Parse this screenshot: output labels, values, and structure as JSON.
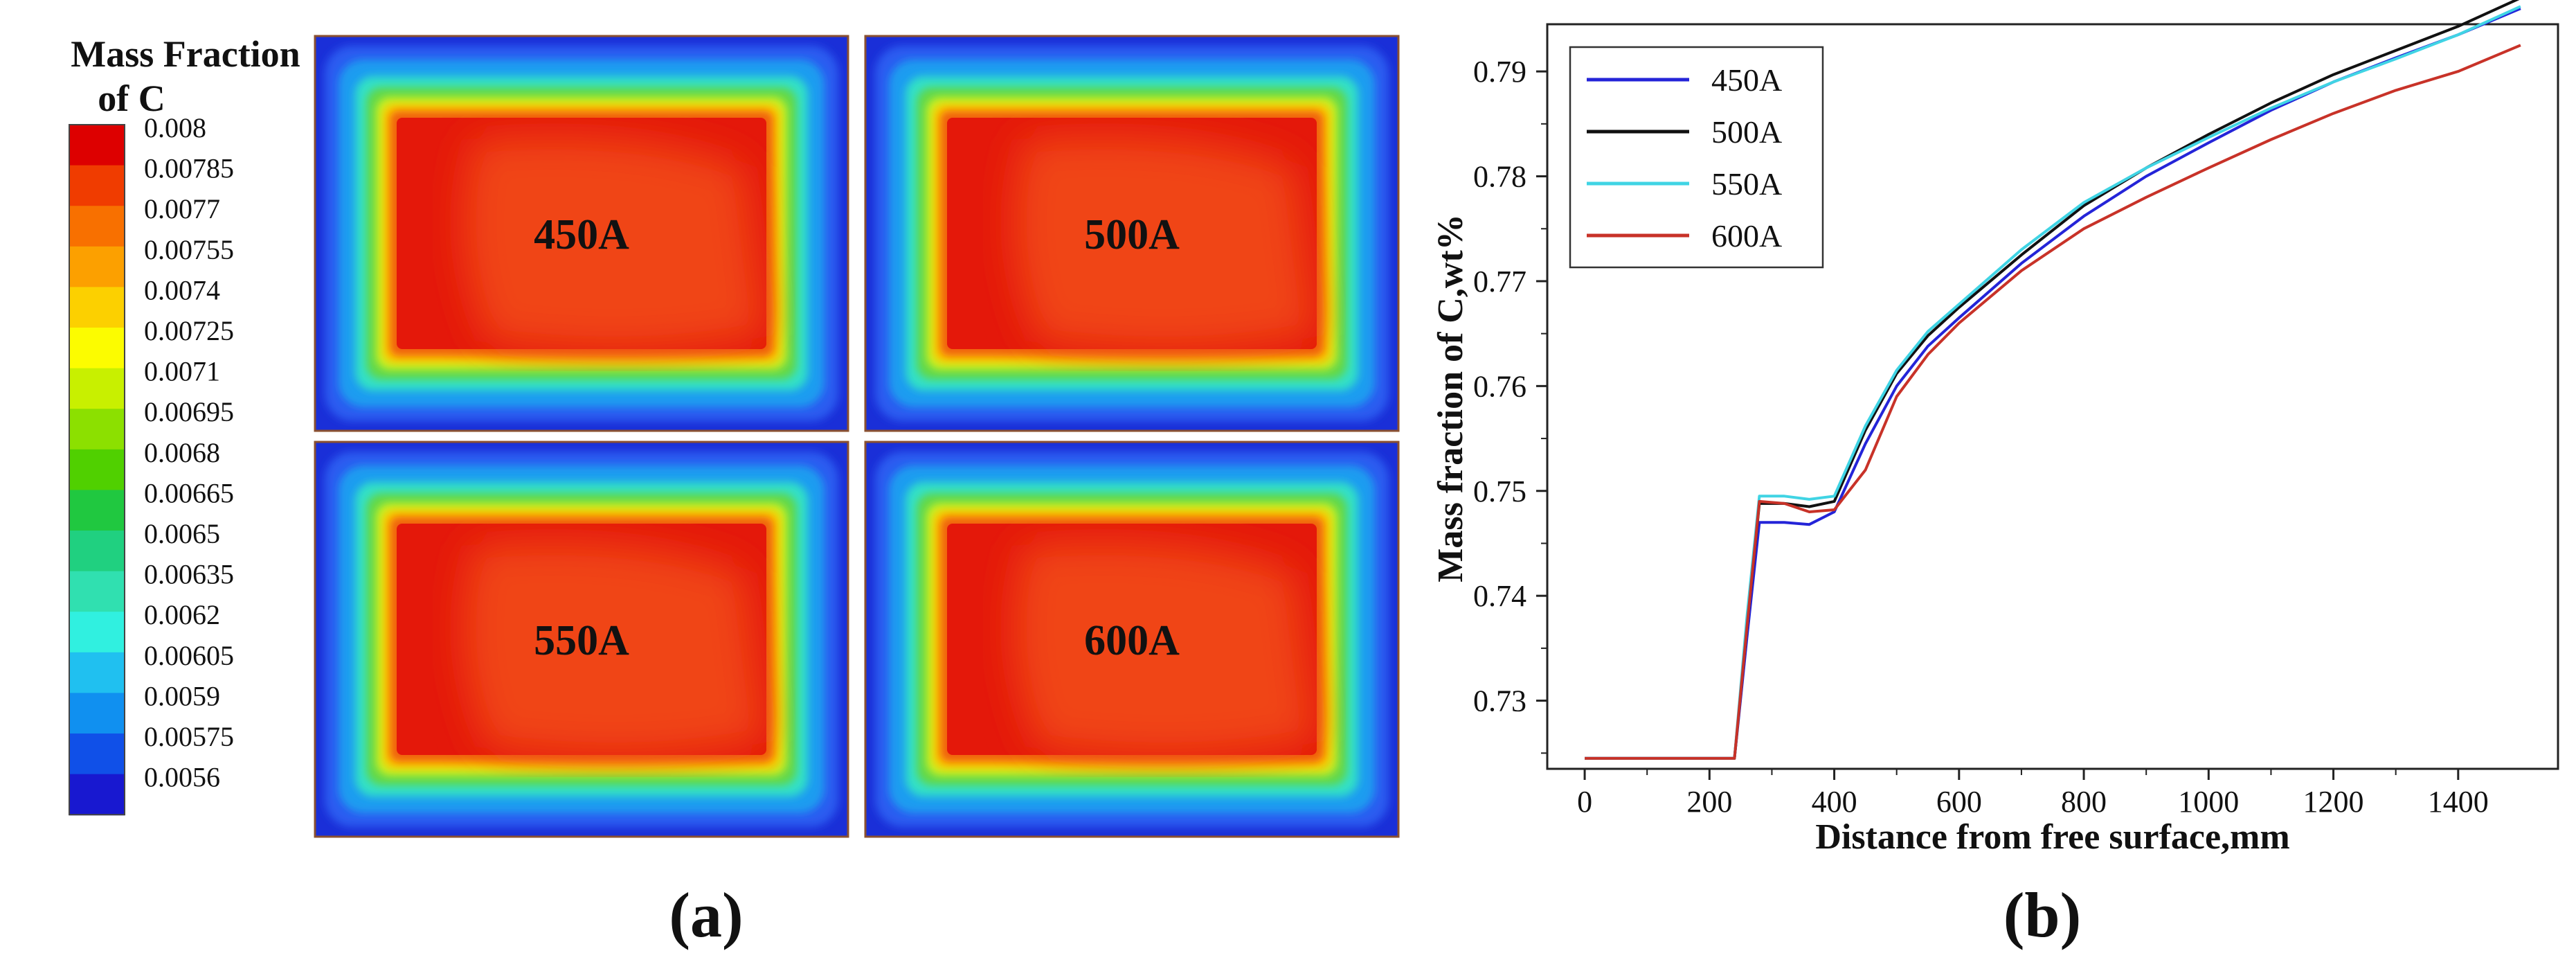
{
  "panel_a": {
    "caption": "(a)",
    "legend_title_line1": "Mass Fraction",
    "legend_title_line2": "of C",
    "legend_levels": [
      "0.008",
      "0.00785",
      "0.0077",
      "0.00755",
      "0.0074",
      "0.00725",
      "0.0071",
      "0.00695",
      "0.0068",
      "0.00665",
      "0.0065",
      "0.00635",
      "0.0062",
      "0.00605",
      "0.0059",
      "0.00575",
      "0.0056"
    ],
    "legend_colors": [
      "#dd0000",
      "#f03c00",
      "#f87000",
      "#fca000",
      "#fcd000",
      "#fcfc00",
      "#c8f000",
      "#8ce000",
      "#50d000",
      "#20c840",
      "#20d080",
      "#30e0b0",
      "#30f0e0",
      "#20c0f0",
      "#1090f0",
      "#1050e8",
      "#1818d0"
    ],
    "contours": [
      {
        "label": "450A",
        "core_color": "#e4180a",
        "plateau_color": "#f04418"
      },
      {
        "label": "500A",
        "core_color": "#e4180a",
        "plateau_color": "#f04418"
      },
      {
        "label": "550A",
        "core_color": "#e4180a",
        "plateau_color": "#f04418"
      },
      {
        "label": "600A",
        "core_color": "#e4180a",
        "plateau_color": "#f04418"
      }
    ]
  },
  "chart_data": {
    "type": "line",
    "caption": "(b)",
    "xlabel": "Distance from free surface,mm",
    "ylabel": "Mass fraction of C,wt%",
    "xlim": [
      -60,
      1560
    ],
    "ylim": [
      0.7235,
      0.7945
    ],
    "xticks": [
      0,
      200,
      400,
      600,
      800,
      1000,
      1200,
      1400
    ],
    "xtick_labels": [
      "0",
      "200",
      "400",
      "600",
      "800",
      "1000",
      "1200",
      "1400"
    ],
    "yticks": [
      0.73,
      0.74,
      0.75,
      0.76,
      0.77,
      0.78,
      0.79
    ],
    "ytick_labels": [
      "0.73",
      "0.74",
      "0.75",
      "0.76",
      "0.77",
      "0.78",
      "0.79"
    ],
    "legend_position": "top-left",
    "series": [
      {
        "name": "450A",
        "color": "#2424d8",
        "x": [
          0,
          240,
          260,
          280,
          320,
          360,
          400,
          450,
          500,
          550,
          600,
          700,
          800,
          900,
          1000,
          1100,
          1200,
          1300,
          1400,
          1500
        ],
        "y": [
          0.7245,
          0.7245,
          0.736,
          0.747,
          0.747,
          0.7468,
          0.748,
          0.7545,
          0.76,
          0.7638,
          0.7665,
          0.7717,
          0.7762,
          0.78,
          0.7832,
          0.7863,
          0.789,
          0.7913,
          0.7935,
          0.796
        ]
      },
      {
        "name": "500A",
        "color": "#111111",
        "x": [
          0,
          240,
          260,
          280,
          320,
          360,
          400,
          450,
          500,
          550,
          600,
          700,
          800,
          900,
          1000,
          1100,
          1200,
          1300,
          1400,
          1500
        ],
        "y": [
          0.7245,
          0.7245,
          0.737,
          0.7488,
          0.7488,
          0.7485,
          0.749,
          0.7558,
          0.7612,
          0.7648,
          0.7675,
          0.7725,
          0.7772,
          0.7808,
          0.784,
          0.787,
          0.7897,
          0.792,
          0.7943,
          0.797
        ]
      },
      {
        "name": "550A",
        "color": "#40d4e4",
        "x": [
          0,
          240,
          260,
          280,
          320,
          360,
          400,
          450,
          500,
          550,
          600,
          700,
          800,
          900,
          1000,
          1100,
          1200,
          1300,
          1400,
          1500
        ],
        "y": [
          0.7245,
          0.7245,
          0.738,
          0.7495,
          0.7495,
          0.7492,
          0.7495,
          0.7562,
          0.7615,
          0.7652,
          0.7678,
          0.773,
          0.7775,
          0.7808,
          0.7837,
          0.7865,
          0.789,
          0.7912,
          0.7935,
          0.7962
        ]
      },
      {
        "name": "600A",
        "color": "#c83228",
        "x": [
          0,
          240,
          260,
          280,
          320,
          360,
          400,
          450,
          500,
          550,
          600,
          700,
          800,
          900,
          1000,
          1100,
          1200,
          1300,
          1400,
          1500
        ],
        "y": [
          0.7245,
          0.7245,
          0.737,
          0.749,
          0.7488,
          0.748,
          0.7482,
          0.752,
          0.759,
          0.763,
          0.766,
          0.771,
          0.775,
          0.778,
          0.7808,
          0.7835,
          0.786,
          0.7882,
          0.79,
          0.7925
        ]
      }
    ]
  }
}
